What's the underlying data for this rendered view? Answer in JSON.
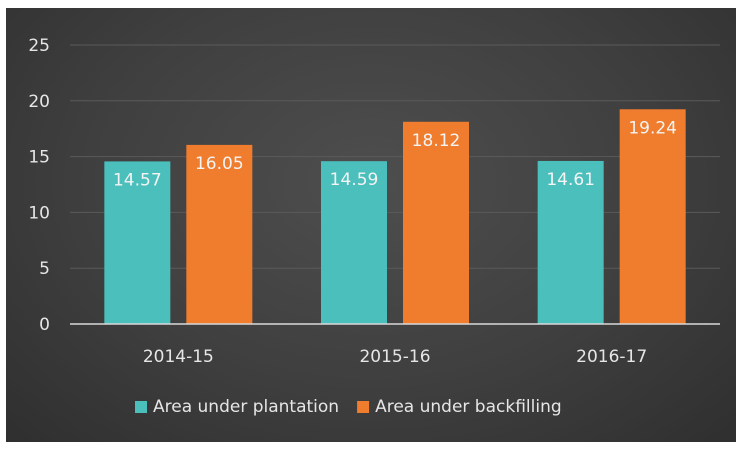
{
  "chart_data": {
    "type": "bar",
    "title": "",
    "xlabel": "",
    "ylabel": "",
    "categories": [
      "2014-15",
      "2015-16",
      "2016-17"
    ],
    "series": [
      {
        "name": "Area under plantation",
        "values": [
          14.57,
          14.59,
          14.61
        ],
        "labels": [
          "14.57",
          "14.59",
          "14.61"
        ],
        "color": "#4bbfbb"
      },
      {
        "name": "Area under backfilling",
        "values": [
          16.05,
          18.12,
          19.24
        ],
        "labels": [
          "16.05",
          "18.12",
          "19.24"
        ],
        "color": "#f07d2e"
      }
    ],
    "ylim": [
      0,
      25
    ],
    "yticks": [
      0,
      5,
      10,
      15,
      20,
      25
    ],
    "grid": true,
    "legend_position": "bottom",
    "colors": {
      "background": "#3f3f3f",
      "gridline": "#5a5a5a",
      "axis": "#d9d9d9",
      "text": "#e6e6e6"
    }
  }
}
